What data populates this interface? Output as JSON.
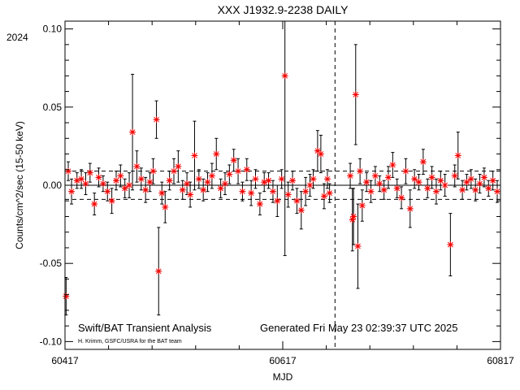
{
  "chart_data": {
    "type": "scatter",
    "title": "XXX J1932.9-2238 DAILY",
    "xlabel": "MJD",
    "ylabel": "Counts/cm^2/sec (15-50 keV)",
    "year_label": "2024",
    "xlim": [
      60417,
      60817
    ],
    "ylim": [
      -0.105,
      0.105
    ],
    "x_ticks": [
      60417,
      60617,
      60817
    ],
    "y_ticks": [
      -0.1,
      -0.05,
      0.0,
      0.05,
      0.1
    ],
    "y_tick_labels": [
      "-0.10",
      "-0.05",
      "0.00",
      "0.05",
      "0.10"
    ],
    "reference_lines": {
      "zero": 0.0,
      "upper_dashed": 0.009,
      "lower_dashed": -0.009,
      "vertical_dashed_mjd": 60665
    },
    "marker": "asterisk",
    "marker_color": "#ff0000",
    "errorbar_color": "#000000",
    "footer_left": "Swift/BAT Transient Analysis",
    "footer_credit": "H. Krimm, GSFC/USRA for the BAT team",
    "footer_right": "Generated Fri May 23 02:39:37 UTC 2025",
    "series": [
      {
        "points": [
          {
            "x": 60418,
            "y": -0.071,
            "err": 0.012
          },
          {
            "x": 60420,
            "y": 0.009,
            "err": 0.006
          },
          {
            "x": 60423,
            "y": -0.004,
            "err": 0.008
          },
          {
            "x": 60428,
            "y": 0.003,
            "err": 0.005
          },
          {
            "x": 60432,
            "y": 0.004,
            "err": 0.006
          },
          {
            "x": 60436,
            "y": 0.001,
            "err": 0.007
          },
          {
            "x": 60440,
            "y": 0.008,
            "err": 0.006
          },
          {
            "x": 60444,
            "y": -0.012,
            "err": 0.007
          },
          {
            "x": 60448,
            "y": 0.005,
            "err": 0.006
          },
          {
            "x": 60452,
            "y": 0.001,
            "err": 0.005
          },
          {
            "x": 60456,
            "y": -0.004,
            "err": 0.006
          },
          {
            "x": 60460,
            "y": -0.01,
            "err": 0.008
          },
          {
            "x": 60464,
            "y": 0.003,
            "err": 0.006
          },
          {
            "x": 60468,
            "y": 0.006,
            "err": 0.007
          },
          {
            "x": 60472,
            "y": -0.002,
            "err": 0.006
          },
          {
            "x": 60476,
            "y": 0.0,
            "err": 0.008
          },
          {
            "x": 60479,
            "y": 0.034,
            "err": 0.037
          },
          {
            "x": 60483,
            "y": 0.012,
            "err": 0.01
          },
          {
            "x": 60487,
            "y": 0.004,
            "err": 0.007
          },
          {
            "x": 60491,
            "y": -0.003,
            "err": 0.008
          },
          {
            "x": 60495,
            "y": 0.002,
            "err": 0.006
          },
          {
            "x": 60498,
            "y": 0.009,
            "err": 0.008
          },
          {
            "x": 60501,
            "y": 0.042,
            "err": 0.012
          },
          {
            "x": 60503,
            "y": -0.055,
            "err": 0.028
          },
          {
            "x": 60506,
            "y": -0.005,
            "err": 0.007
          },
          {
            "x": 60509,
            "y": -0.014,
            "err": 0.01
          },
          {
            "x": 60513,
            "y": 0.003,
            "err": 0.006
          },
          {
            "x": 60517,
            "y": 0.009,
            "err": 0.008
          },
          {
            "x": 60521,
            "y": 0.012,
            "err": 0.01
          },
          {
            "x": 60525,
            "y": -0.003,
            "err": 0.006
          },
          {
            "x": 60529,
            "y": 0.001,
            "err": 0.007
          },
          {
            "x": 60532,
            "y": -0.006,
            "err": 0.008
          },
          {
            "x": 60536,
            "y": 0.019,
            "err": 0.022
          },
          {
            "x": 60540,
            "y": 0.004,
            "err": 0.006
          },
          {
            "x": 60544,
            "y": -0.003,
            "err": 0.007
          },
          {
            "x": 60548,
            "y": 0.002,
            "err": 0.006
          },
          {
            "x": 60552,
            "y": 0.006,
            "err": 0.008
          },
          {
            "x": 60556,
            "y": 0.02,
            "err": 0.01
          },
          {
            "x": 60560,
            "y": -0.002,
            "err": 0.006
          },
          {
            "x": 60564,
            "y": 0.001,
            "err": 0.007
          },
          {
            "x": 60568,
            "y": 0.007,
            "err": 0.006
          },
          {
            "x": 60572,
            "y": 0.016,
            "err": 0.007
          },
          {
            "x": 60576,
            "y": 0.009,
            "err": 0.008
          },
          {
            "x": 60580,
            "y": -0.004,
            "err": 0.006
          },
          {
            "x": 60584,
            "y": 0.01,
            "err": 0.007
          },
          {
            "x": 60588,
            "y": -0.005,
            "err": 0.008
          },
          {
            "x": 60592,
            "y": 0.004,
            "err": 0.006
          },
          {
            "x": 60596,
            "y": -0.012,
            "err": 0.007
          },
          {
            "x": 60600,
            "y": 0.002,
            "err": 0.006
          },
          {
            "x": 60604,
            "y": 0.003,
            "err": 0.005
          },
          {
            "x": 60608,
            "y": -0.004,
            "err": 0.007
          },
          {
            "x": 60612,
            "y": -0.01,
            "err": 0.01
          },
          {
            "x": 60616,
            "y": 0.004,
            "err": 0.006
          },
          {
            "x": 60619,
            "y": 0.07,
            "err": 0.115
          },
          {
            "x": 60622,
            "y": -0.006,
            "err": 0.008
          },
          {
            "x": 60626,
            "y": 0.003,
            "err": 0.006
          },
          {
            "x": 60630,
            "y": -0.01,
            "err": 0.008
          },
          {
            "x": 60634,
            "y": -0.016,
            "err": 0.012
          },
          {
            "x": 60638,
            "y": -0.004,
            "err": 0.009
          },
          {
            "x": 60642,
            "y": 0.0,
            "err": 0.007
          },
          {
            "x": 60645,
            "y": 0.004,
            "err": 0.006
          },
          {
            "x": 60649,
            "y": 0.022,
            "err": 0.013
          },
          {
            "x": 60652,
            "y": 0.02,
            "err": 0.012
          },
          {
            "x": 60655,
            "y": -0.007,
            "err": 0.008
          },
          {
            "x": 60658,
            "y": 0.004,
            "err": 0.006
          },
          {
            "x": 60660,
            "y": -0.005,
            "err": 0.006
          },
          {
            "x": 60679,
            "y": 0.006,
            "err": 0.008
          },
          {
            "x": 60681,
            "y": -0.022,
            "err": 0.02
          },
          {
            "x": 60682,
            "y": -0.02,
            "err": 0.018
          },
          {
            "x": 60684,
            "y": 0.058,
            "err": 0.032
          },
          {
            "x": 60686,
            "y": -0.039,
            "err": 0.027
          },
          {
            "x": 60688,
            "y": 0.009,
            "err": 0.008
          },
          {
            "x": 60690,
            "y": -0.013,
            "err": 0.01
          },
          {
            "x": 60694,
            "y": 0.002,
            "err": 0.006
          },
          {
            "x": 60698,
            "y": -0.004,
            "err": 0.007
          },
          {
            "x": 60702,
            "y": 0.006,
            "err": 0.006
          },
          {
            "x": 60706,
            "y": 0.001,
            "err": 0.005
          },
          {
            "x": 60710,
            "y": -0.003,
            "err": 0.006
          },
          {
            "x": 60714,
            "y": 0.005,
            "err": 0.007
          },
          {
            "x": 60718,
            "y": 0.013,
            "err": 0.008
          },
          {
            "x": 60722,
            "y": -0.002,
            "err": 0.006
          },
          {
            "x": 60726,
            "y": -0.008,
            "err": 0.007
          },
          {
            "x": 60730,
            "y": 0.009,
            "err": 0.008
          },
          {
            "x": 60734,
            "y": -0.015,
            "err": 0.012
          },
          {
            "x": 60738,
            "y": 0.004,
            "err": 0.006
          },
          {
            "x": 60742,
            "y": 0.002,
            "err": 0.005
          },
          {
            "x": 60746,
            "y": 0.015,
            "err": 0.008
          },
          {
            "x": 60750,
            "y": -0.002,
            "err": 0.006
          },
          {
            "x": 60754,
            "y": 0.005,
            "err": 0.007
          },
          {
            "x": 60758,
            "y": -0.004,
            "err": 0.008
          },
          {
            "x": 60762,
            "y": 0.003,
            "err": 0.006
          },
          {
            "x": 60766,
            "y": 0.0,
            "err": 0.007
          },
          {
            "x": 60771,
            "y": -0.038,
            "err": 0.02
          },
          {
            "x": 60775,
            "y": 0.006,
            "err": 0.007
          },
          {
            "x": 60778,
            "y": 0.019,
            "err": 0.015
          },
          {
            "x": 60782,
            "y": -0.003,
            "err": 0.006
          },
          {
            "x": 60786,
            "y": 0.002,
            "err": 0.005
          },
          {
            "x": 60790,
            "y": 0.004,
            "err": 0.006
          },
          {
            "x": 60794,
            "y": -0.003,
            "err": 0.007
          },
          {
            "x": 60798,
            "y": 0.001,
            "err": 0.006
          },
          {
            "x": 60802,
            "y": 0.005,
            "err": 0.006
          },
          {
            "x": 60806,
            "y": -0.002,
            "err": 0.005
          },
          {
            "x": 60810,
            "y": 0.003,
            "err": 0.006
          },
          {
            "x": 60814,
            "y": -0.004,
            "err": 0.007
          }
        ]
      }
    ]
  }
}
